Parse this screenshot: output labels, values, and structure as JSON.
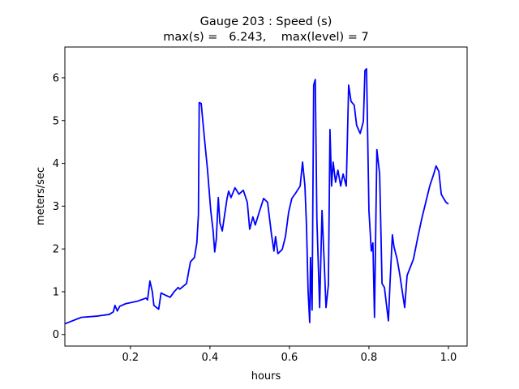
{
  "chart_data": {
    "type": "line",
    "title": "Gauge 203 : Speed (s)",
    "subtitle": "max(s) =   6.243,    max(level) = 7",
    "xlabel": "hours",
    "ylabel": "meters/sec",
    "xlim": [
      0.035,
      1.047
    ],
    "ylim": [
      -0.27,
      6.72
    ],
    "xticks": [
      0.2,
      0.4,
      0.6,
      0.8,
      {
        "value": 1,
        "label": "1.0"
      }
    ],
    "yticks": [
      0,
      1,
      2,
      3,
      4,
      5,
      6
    ],
    "grid": false,
    "series": [
      {
        "color": "#0000ff",
        "x": [
          0.035,
          0.076,
          0.116,
          0.147,
          0.157,
          0.161,
          0.167,
          0.173,
          0.188,
          0.218,
          0.239,
          0.243,
          0.249,
          0.255,
          0.259,
          0.271,
          0.277,
          0.29,
          0.3,
          0.31,
          0.32,
          0.324,
          0.341,
          0.351,
          0.361,
          0.367,
          0.371,
          0.373,
          0.378,
          0.386,
          0.394,
          0.402,
          0.408,
          0.412,
          0.416,
          0.421,
          0.425,
          0.431,
          0.437,
          0.443,
          0.447,
          0.453,
          0.463,
          0.473,
          0.484,
          0.494,
          0.5,
          0.508,
          0.514,
          0.524,
          0.535,
          0.545,
          0.555,
          0.561,
          0.565,
          0.571,
          0.582,
          0.59,
          0.598,
          0.606,
          0.616,
          0.627,
          0.633,
          0.639,
          0.643,
          0.647,
          0.651,
          0.653,
          0.657,
          0.661,
          0.665,
          0.669,
          0.676,
          0.682,
          0.688,
          0.692,
          0.698,
          0.702,
          0.706,
          0.71,
          0.716,
          0.722,
          0.729,
          0.735,
          0.743,
          0.749,
          0.755,
          0.763,
          0.769,
          0.778,
          0.786,
          0.79,
          0.794,
          0.8,
          0.806,
          0.81,
          0.814,
          0.82,
          0.827,
          0.833,
          0.839,
          0.845,
          0.849,
          0.853,
          0.859,
          0.863,
          0.871,
          0.878,
          0.884,
          0.89,
          0.896,
          0.904,
          0.912,
          0.922,
          0.933,
          0.943,
          0.953,
          0.963,
          0.969,
          0.976,
          0.982,
          0.988,
          0.994,
          1.0
        ],
        "values": [
          0.25,
          0.4,
          0.43,
          0.47,
          0.53,
          0.68,
          0.55,
          0.66,
          0.72,
          0.78,
          0.85,
          0.81,
          1.25,
          1.0,
          0.68,
          0.59,
          0.97,
          0.91,
          0.87,
          1.0,
          1.1,
          1.06,
          1.19,
          1.7,
          1.8,
          2.14,
          2.8,
          5.42,
          5.4,
          4.6,
          3.84,
          2.9,
          2.42,
          1.93,
          2.23,
          3.2,
          2.61,
          2.42,
          2.8,
          3.18,
          3.35,
          3.2,
          3.43,
          3.28,
          3.37,
          3.09,
          2.46,
          2.75,
          2.56,
          2.86,
          3.18,
          3.09,
          2.33,
          1.95,
          2.29,
          1.89,
          1.99,
          2.29,
          2.86,
          3.18,
          3.31,
          3.47,
          4.03,
          3.47,
          2.52,
          1.0,
          0.28,
          1.8,
          0.57,
          5.83,
          5.96,
          2.71,
          0.63,
          2.9,
          1.57,
          0.63,
          1.16,
          4.79,
          3.47,
          4.03,
          3.56,
          3.84,
          3.47,
          3.75,
          3.47,
          5.83,
          5.45,
          5.36,
          4.89,
          4.7,
          4.98,
          6.17,
          6.21,
          2.9,
          1.95,
          2.14,
          0.4,
          4.32,
          3.75,
          1.19,
          1.1,
          0.63,
          0.32,
          1.19,
          2.33,
          2.05,
          1.76,
          1.38,
          1.0,
          0.63,
          1.38,
          1.57,
          1.76,
          2.23,
          2.71,
          3.09,
          3.47,
          3.75,
          3.94,
          3.81,
          3.28,
          3.18,
          3.09,
          3.05
        ]
      }
    ]
  }
}
